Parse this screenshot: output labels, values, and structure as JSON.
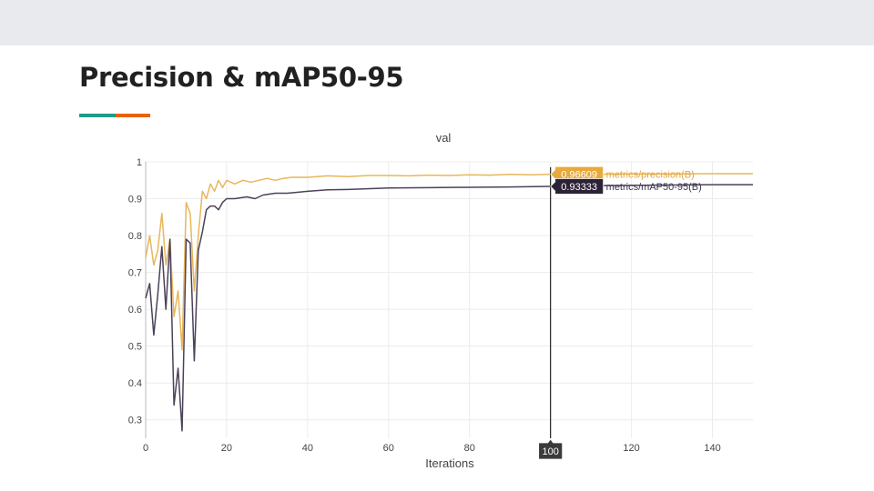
{
  "slide": {
    "title": "Precision & mAP50-95",
    "accent_colors": [
      "#1e9b8a",
      "#e8620c"
    ]
  },
  "chart_data": {
    "type": "line",
    "title": "val",
    "xlabel": "Iterations",
    "ylabel": "",
    "xlim": [
      0,
      150
    ],
    "ylim": [
      0.25,
      1.0
    ],
    "xticks": [
      0,
      20,
      40,
      60,
      80,
      100,
      120,
      140
    ],
    "yticks": [
      0.3,
      0.4,
      0.5,
      0.6,
      0.7,
      0.8,
      0.9,
      1
    ],
    "grid": true,
    "legend": "hover-tooltip",
    "hover": {
      "x": 100,
      "x_label": "100",
      "values": [
        "0.96609",
        "0.93333"
      ],
      "labels": [
        "metrics/precision(B)",
        "metrics/mAP50-95(B)"
      ]
    },
    "series": [
      {
        "name": "metrics/precision(B)",
        "color": "#e8b75a",
        "points": [
          [
            0,
            0.74
          ],
          [
            1,
            0.8
          ],
          [
            2,
            0.72
          ],
          [
            3,
            0.76
          ],
          [
            4,
            0.86
          ],
          [
            5,
            0.72
          ],
          [
            6,
            0.79
          ],
          [
            7,
            0.58
          ],
          [
            8,
            0.65
          ],
          [
            9,
            0.49
          ],
          [
            10,
            0.89
          ],
          [
            11,
            0.86
          ],
          [
            12,
            0.65
          ],
          [
            13,
            0.8
          ],
          [
            14,
            0.92
          ],
          [
            15,
            0.9
          ],
          [
            16,
            0.94
          ],
          [
            17,
            0.92
          ],
          [
            18,
            0.95
          ],
          [
            19,
            0.93
          ],
          [
            20,
            0.95
          ],
          [
            22,
            0.94
          ],
          [
            24,
            0.95
          ],
          [
            26,
            0.945
          ],
          [
            28,
            0.95
          ],
          [
            30,
            0.955
          ],
          [
            32,
            0.95
          ],
          [
            34,
            0.955
          ],
          [
            36,
            0.958
          ],
          [
            40,
            0.958
          ],
          [
            45,
            0.962
          ],
          [
            50,
            0.96
          ],
          [
            55,
            0.963
          ],
          [
            60,
            0.963
          ],
          [
            65,
            0.962
          ],
          [
            70,
            0.964
          ],
          [
            75,
            0.963
          ],
          [
            80,
            0.965
          ],
          [
            85,
            0.964
          ],
          [
            90,
            0.966
          ],
          [
            95,
            0.965
          ],
          [
            100,
            0.96609
          ],
          [
            110,
            0.966
          ],
          [
            120,
            0.967
          ],
          [
            130,
            0.967
          ],
          [
            140,
            0.968
          ],
          [
            150,
            0.968
          ]
        ]
      },
      {
        "name": "metrics/mAP50-95(B)",
        "color": "#4b4259",
        "points": [
          [
            0,
            0.63
          ],
          [
            1,
            0.67
          ],
          [
            2,
            0.53
          ],
          [
            3,
            0.64
          ],
          [
            4,
            0.77
          ],
          [
            5,
            0.6
          ],
          [
            6,
            0.79
          ],
          [
            7,
            0.34
          ],
          [
            8,
            0.44
          ],
          [
            9,
            0.27
          ],
          [
            10,
            0.79
          ],
          [
            11,
            0.78
          ],
          [
            12,
            0.46
          ],
          [
            13,
            0.76
          ],
          [
            14,
            0.81
          ],
          [
            15,
            0.87
          ],
          [
            16,
            0.88
          ],
          [
            17,
            0.88
          ],
          [
            18,
            0.87
          ],
          [
            19,
            0.89
          ],
          [
            20,
            0.9
          ],
          [
            22,
            0.9
          ],
          [
            25,
            0.905
          ],
          [
            27,
            0.9
          ],
          [
            29,
            0.91
          ],
          [
            32,
            0.915
          ],
          [
            35,
            0.915
          ],
          [
            38,
            0.918
          ],
          [
            40,
            0.92
          ],
          [
            45,
            0.924
          ],
          [
            50,
            0.925
          ],
          [
            60,
            0.929
          ],
          [
            70,
            0.93
          ],
          [
            80,
            0.931
          ],
          [
            90,
            0.932
          ],
          [
            100,
            0.93333
          ],
          [
            110,
            0.935
          ],
          [
            120,
            0.936
          ],
          [
            130,
            0.937
          ],
          [
            140,
            0.938
          ],
          [
            150,
            0.938
          ]
        ]
      }
    ]
  }
}
